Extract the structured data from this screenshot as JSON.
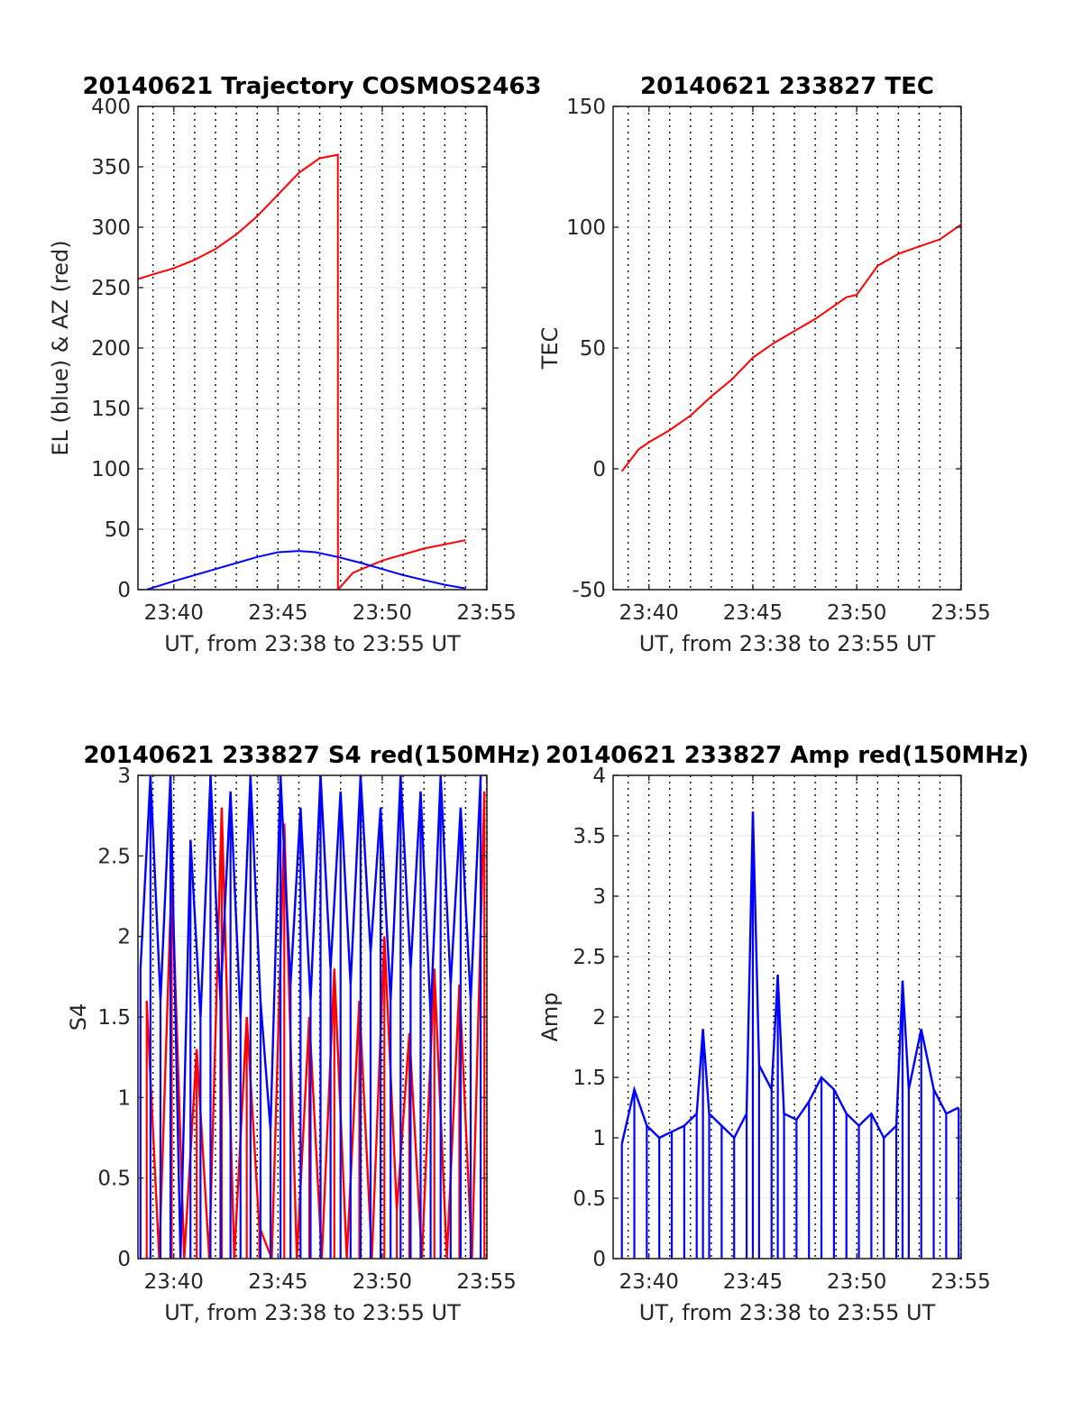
{
  "chart_data": [
    {
      "type": "line",
      "title": "20140621 Trajectory COSMOS2463",
      "xlabel": "UT, from 23:38 to 23:55 UT",
      "ylabel": "EL (blue) & AZ (red)",
      "xlim": [
        23.638,
        23.917
      ],
      "ylim": [
        0,
        400
      ],
      "xticks": [
        23.6667,
        23.75,
        23.8333,
        23.9167
      ],
      "xtick_labels": [
        "23:40",
        "23:45",
        "23:50",
        "23:55"
      ],
      "yticks": [
        0,
        50,
        100,
        150,
        200,
        250,
        300,
        350,
        400
      ],
      "ytick_labels": [
        "0",
        "50",
        "100",
        "150",
        "200",
        "250",
        "300",
        "350",
        "400"
      ],
      "grid": true,
      "series": [
        {
          "color": "#ff0000",
          "x": [
            23.638,
            23.65,
            23.6667,
            23.6833,
            23.7,
            23.7167,
            23.7333,
            23.75,
            23.7667,
            23.7833,
            23.7978,
            23.7979,
            23.81,
            23.8333,
            23.8667,
            23.9
          ],
          "y": [
            257,
            261,
            266,
            273,
            282,
            294,
            309,
            327,
            345,
            357,
            360,
            0,
            14,
            24,
            34,
            41
          ]
        },
        {
          "color": "#0000ff",
          "x": [
            23.645,
            23.6667,
            23.6833,
            23.7,
            23.7167,
            23.7333,
            23.75,
            23.7667,
            23.78,
            23.7978,
            23.8167,
            23.8333,
            23.85,
            23.8667,
            23.8833,
            23.9
          ],
          "y": [
            0,
            7,
            12,
            17,
            22,
            27,
            31,
            32,
            31,
            27,
            22,
            17,
            12,
            8,
            4,
            1
          ]
        }
      ]
    },
    {
      "type": "line",
      "title": "20140621 233827 TEC",
      "xlabel": "UT, from 23:38 to 23:55 UT",
      "ylabel": "TEC",
      "xlim": [
        23.638,
        23.917
      ],
      "ylim": [
        -50,
        150
      ],
      "xticks": [
        23.6667,
        23.75,
        23.8333,
        23.9167
      ],
      "xtick_labels": [
        "23:40",
        "23:45",
        "23:50",
        "23:55"
      ],
      "yticks": [
        -50,
        0,
        50,
        100,
        150
      ],
      "ytick_labels": [
        "-50",
        "0",
        "50",
        "100",
        "150"
      ],
      "grid": true,
      "series": [
        {
          "color": "#ff0000",
          "x": [
            23.645,
            23.6583,
            23.6667,
            23.6833,
            23.7,
            23.7167,
            23.7333,
            23.75,
            23.7667,
            23.7833,
            23.8,
            23.8167,
            23.825,
            23.8333,
            23.85,
            23.8667,
            23.8833,
            23.9,
            23.9167
          ],
          "y": [
            -1,
            8,
            11,
            16,
            22,
            30,
            37,
            46,
            52,
            57,
            62,
            68,
            71,
            72,
            84,
            89,
            92,
            95,
            101
          ]
        }
      ]
    },
    {
      "type": "line",
      "title": "20140621 233827 S4 red(150MHz)",
      "xlabel": "UT, from 23:38 to 23:55 UT",
      "ylabel": "S4",
      "xlim": [
        23.638,
        23.917
      ],
      "ylim": [
        0,
        3
      ],
      "xticks": [
        23.6667,
        23.75,
        23.8333,
        23.9167
      ],
      "xtick_labels": [
        "23:40",
        "23:45",
        "23:50",
        "23:55"
      ],
      "yticks": [
        0,
        0.5,
        1,
        1.5,
        2,
        2.5,
        3
      ],
      "ytick_labels": [
        "0",
        "0.5",
        "1",
        "1.5",
        "2",
        "2.5",
        "3"
      ],
      "grid": true,
      "series": [
        {
          "color": "#ff0000",
          "x": [
            23.645,
            23.655,
            23.665,
            23.675,
            23.685,
            23.695,
            23.705,
            23.715,
            23.725,
            23.735,
            23.745,
            23.755,
            23.765,
            23.775,
            23.785,
            23.795,
            23.805,
            23.815,
            23.825,
            23.835,
            23.845,
            23.855,
            23.865,
            23.875,
            23.885,
            23.895,
            23.905,
            23.915
          ],
          "y": [
            1.6,
            0,
            2.4,
            0,
            1.3,
            0,
            2.8,
            0,
            1.5,
            0.2,
            0,
            2.7,
            0,
            1.5,
            0,
            1.8,
            0,
            1.6,
            0,
            2.0,
            0.3,
            1.4,
            0,
            1.8,
            0,
            1.7,
            0,
            2.9
          ]
        },
        {
          "color": "#0000ff",
          "x": [
            23.64,
            23.648,
            23.656,
            23.664,
            23.672,
            23.68,
            23.688,
            23.696,
            23.704,
            23.712,
            23.72,
            23.728,
            23.736,
            23.744,
            23.752,
            23.76,
            23.768,
            23.776,
            23.784,
            23.792,
            23.8,
            23.808,
            23.816,
            23.824,
            23.832,
            23.84,
            23.848,
            23.856,
            23.864,
            23.872,
            23.88,
            23.888,
            23.896,
            23.904,
            23.912
          ],
          "y": [
            1.8,
            3.0,
            1.6,
            3.0,
            0,
            2.6,
            1.5,
            3.0,
            1.6,
            2.9,
            1.5,
            3.0,
            1.6,
            0.8,
            3.0,
            1.7,
            2.8,
            1.6,
            3.0,
            1.8,
            2.9,
            1.7,
            3.0,
            1.9,
            2.8,
            1.6,
            3.0,
            1.8,
            2.9,
            1.5,
            3.0,
            1.7,
            2.8,
            1.6,
            3.0
          ]
        }
      ]
    },
    {
      "type": "line",
      "title": "20140621 233827 Amp red(150MHz)",
      "xlabel": "UT, from 23:38 to 23:55 UT",
      "ylabel": "Amp",
      "xlim": [
        23.638,
        23.917
      ],
      "ylim": [
        0,
        4
      ],
      "xticks": [
        23.6667,
        23.75,
        23.8333,
        23.9167
      ],
      "xtick_labels": [
        "23:40",
        "23:45",
        "23:50",
        "23:55"
      ],
      "yticks": [
        0,
        0.5,
        1,
        1.5,
        2,
        2.5,
        3,
        3.5,
        4
      ],
      "ytick_labels": [
        "0",
        "0.5",
        "1",
        "1.5",
        "2",
        "2.5",
        "3",
        "3.5",
        "4"
      ],
      "grid": true,
      "series": [
        {
          "color": "#0000ff",
          "x": [
            23.645,
            23.655,
            23.665,
            23.675,
            23.685,
            23.695,
            23.705,
            23.71,
            23.715,
            23.725,
            23.735,
            23.745,
            23.75,
            23.755,
            23.765,
            23.77,
            23.775,
            23.785,
            23.795,
            23.805,
            23.815,
            23.825,
            23.835,
            23.845,
            23.855,
            23.865,
            23.87,
            23.875,
            23.885,
            23.895,
            23.905,
            23.915
          ],
          "y": [
            0.95,
            1.4,
            1.1,
            1.0,
            1.05,
            1.1,
            1.2,
            1.9,
            1.2,
            1.1,
            1.0,
            1.2,
            3.7,
            1.6,
            1.4,
            2.35,
            1.2,
            1.15,
            1.3,
            1.5,
            1.4,
            1.2,
            1.1,
            1.2,
            1.0,
            1.1,
            2.3,
            1.4,
            1.9,
            1.4,
            1.2,
            1.25
          ]
        }
      ]
    }
  ]
}
